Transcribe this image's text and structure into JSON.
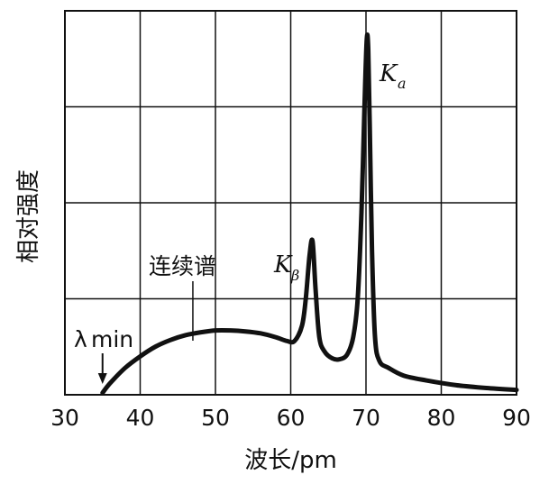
{
  "chart_data": {
    "type": "line",
    "title": "",
    "xlabel": "波长/pm",
    "ylabel": "相对强度",
    "xlim": [
      30,
      90
    ],
    "ylim": [
      0,
      4
    ],
    "grid": true,
    "x_ticks": [
      "30",
      "40",
      "50",
      "60",
      "70",
      "80",
      "90"
    ],
    "y_ticks_labeled": false,
    "series": [
      {
        "x": [
          35.0,
          36.0,
          38.0,
          40.0,
          42.0,
          44.0,
          46.0,
          48.0,
          50.0,
          52.0,
          54.0,
          56.0,
          58.0,
          59.5,
          60.5,
          61.5,
          62.0,
          62.5,
          62.9,
          63.3,
          63.8,
          64.5,
          65.5,
          66.5,
          67.5,
          68.3,
          68.9,
          69.4,
          69.8,
          70.1,
          70.3,
          70.5,
          70.8,
          71.2,
          71.8,
          73.0,
          75.0,
          78.0,
          82.0,
          86.0,
          90.0
        ],
        "y": [
          0.02,
          0.12,
          0.28,
          0.4,
          0.5,
          0.57,
          0.62,
          0.65,
          0.67,
          0.67,
          0.66,
          0.64,
          0.6,
          0.56,
          0.56,
          0.72,
          1.0,
          1.45,
          1.6,
          1.1,
          0.6,
          0.45,
          0.38,
          0.37,
          0.42,
          0.6,
          1.0,
          1.9,
          3.0,
          3.7,
          3.6,
          2.8,
          1.5,
          0.6,
          0.35,
          0.28,
          0.2,
          0.15,
          0.1,
          0.07,
          0.05
        ]
      }
    ],
    "annotations": {
      "lambda_min": {
        "symbol": "λ",
        "text": "min",
        "x": 35.0
      },
      "continuous": {
        "text": "连续谱",
        "x": 47.0
      },
      "k_beta": {
        "symbol": "K",
        "sub": "β",
        "x": 62.9
      },
      "k_alpha": {
        "symbol": "K",
        "sub": "a",
        "x": 70.1
      }
    }
  }
}
